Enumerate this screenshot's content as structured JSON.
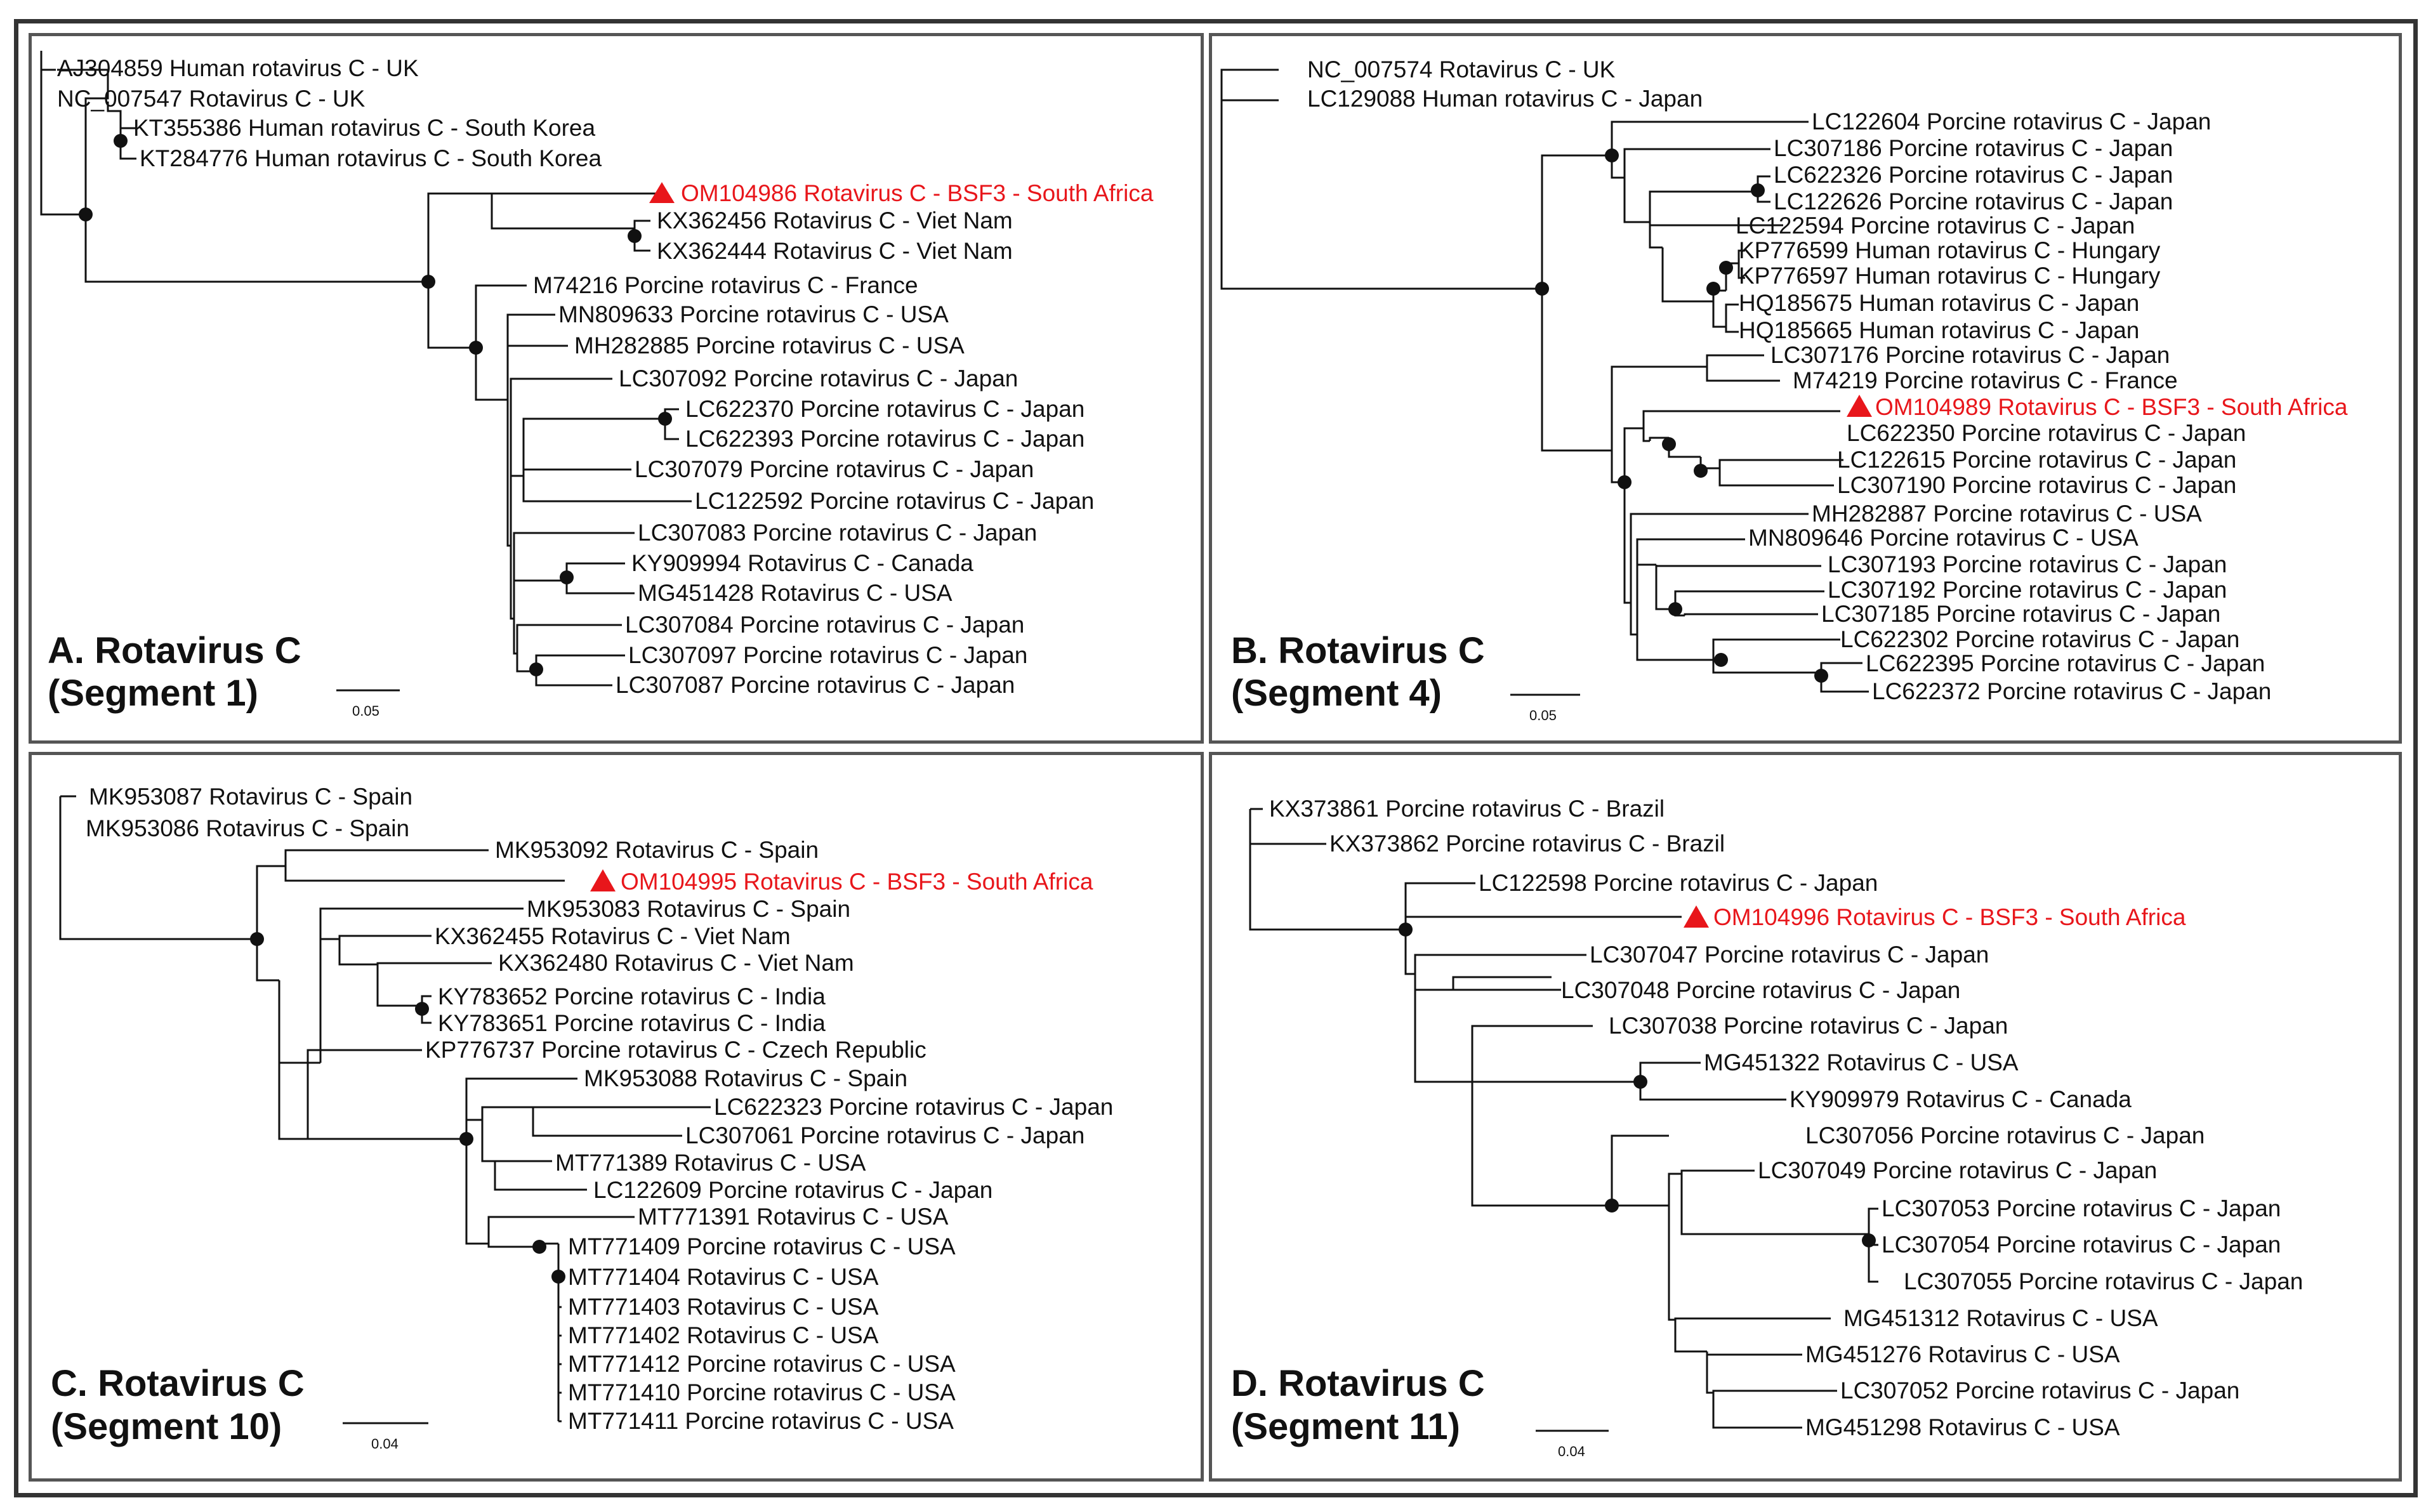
{
  "figure": {
    "description_panels": 4,
    "highlight_color": "#e8161b",
    "text_color": "#111111"
  },
  "panels": [
    {
      "id": "A",
      "title_line1": "A. Rotavirus C",
      "title_line2": "(Segment 1)",
      "scale": "0.05",
      "taxa": [
        {
          "label": "AJ304859 Human rotavirus C - UK"
        },
        {
          "label": "NC_007547 Rotavirus C - UK"
        },
        {
          "label": "KT355386 Human rotavirus C - South Korea"
        },
        {
          "label": "KT284776 Human rotavirus C - South Korea"
        },
        {
          "label": "OM104986 Rotavirus C - BSF3 - South Africa",
          "highlight": true
        },
        {
          "label": "KX362456 Rotavirus C - Viet Nam"
        },
        {
          "label": "KX362444 Rotavirus C - Viet Nam"
        },
        {
          "label": "M74216 Porcine rotavirus C - France"
        },
        {
          "label": "MN809633 Porcine rotavirus C - USA"
        },
        {
          "label": "MH282885 Porcine rotavirus C - USA"
        },
        {
          "label": "LC307092 Porcine rotavirus C - Japan"
        },
        {
          "label": "LC622370 Porcine rotavirus C - Japan"
        },
        {
          "label": "LC622393 Porcine rotavirus C - Japan"
        },
        {
          "label": "LC307079 Porcine rotavirus C - Japan"
        },
        {
          "label": "LC122592 Porcine rotavirus C - Japan"
        },
        {
          "label": "LC307083 Porcine rotavirus C - Japan"
        },
        {
          "label": "KY909994 Rotavirus C - Canada"
        },
        {
          "label": "MG451428 Rotavirus C - USA"
        },
        {
          "label": "LC307084 Porcine rotavirus C - Japan"
        },
        {
          "label": "LC307097 Porcine rotavirus C - Japan"
        },
        {
          "label": "LC307087 Porcine rotavirus C - Japan"
        }
      ]
    },
    {
      "id": "B",
      "title_line1": "B. Rotavirus C",
      "title_line2": "(Segment 4)",
      "scale": "0.05",
      "taxa": [
        {
          "label": "NC_007574 Rotavirus C - UK"
        },
        {
          "label": "LC129088 Human rotavirus C - Japan"
        },
        {
          "label": "LC122604 Porcine rotavirus C - Japan"
        },
        {
          "label": "LC307186 Porcine rotavirus C - Japan"
        },
        {
          "label": "LC622326 Porcine rotavirus C - Japan"
        },
        {
          "label": "LC122626 Porcine rotavirus C - Japan"
        },
        {
          "label": "LC122594 Porcine rotavirus C - Japan"
        },
        {
          "label": "KP776599 Human rotavirus C - Hungary"
        },
        {
          "label": "KP776597 Human rotavirus C - Hungary"
        },
        {
          "label": "HQ185675 Human rotavirus C - Japan"
        },
        {
          "label": "HQ185665 Human rotavirus C - Japan"
        },
        {
          "label": "LC307176 Porcine rotavirus C - Japan"
        },
        {
          "label": "M74219 Porcine rotavirus C - France"
        },
        {
          "label": "OM104989 Rotavirus C - BSF3 - South Africa",
          "highlight": true
        },
        {
          "label": "LC622350 Porcine rotavirus C - Japan"
        },
        {
          "label": "LC122615 Porcine rotavirus C - Japan"
        },
        {
          "label": "LC307190 Porcine rotavirus C - Japan"
        },
        {
          "label": "MH282887 Porcine rotavirus C - USA"
        },
        {
          "label": "MN809646 Porcine rotavirus C - USA"
        },
        {
          "label": "LC307193 Porcine rotavirus C - Japan"
        },
        {
          "label": "LC307192 Porcine rotavirus C - Japan"
        },
        {
          "label": "LC307185 Porcine rotavirus C - Japan"
        },
        {
          "label": "LC622302 Porcine rotavirus C - Japan"
        },
        {
          "label": "LC622395 Porcine rotavirus C - Japan"
        },
        {
          "label": "LC622372 Porcine rotavirus C - Japan"
        }
      ]
    },
    {
      "id": "C",
      "title_line1": "C. Rotavirus C",
      "title_line2": "(Segment 10)",
      "scale": "0.04",
      "taxa": [
        {
          "label": "MK953087 Rotavirus C - Spain"
        },
        {
          "label": "MK953086 Rotavirus C - Spain"
        },
        {
          "label": "MK953092 Rotavirus C - Spain"
        },
        {
          "label": "OM104995 Rotavirus C - BSF3 - South Africa",
          "highlight": true
        },
        {
          "label": "MK953083 Rotavirus C - Spain"
        },
        {
          "label": "KX362455 Rotavirus C - Viet Nam"
        },
        {
          "label": "KX362480 Rotavirus C - Viet Nam"
        },
        {
          "label": "KY783652 Porcine rotavirus C - India"
        },
        {
          "label": "KY783651 Porcine rotavirus C - India"
        },
        {
          "label": "KP776737 Porcine rotavirus C - Czech Republic"
        },
        {
          "label": "MK953088 Rotavirus C - Spain"
        },
        {
          "label": "LC622323 Porcine rotavirus C - Japan"
        },
        {
          "label": "LC307061 Porcine rotavirus C - Japan"
        },
        {
          "label": "MT771389 Rotavirus C - USA"
        },
        {
          "label": "LC122609 Porcine rotavirus C - Japan"
        },
        {
          "label": "MT771391 Rotavirus C - USA"
        },
        {
          "label": "MT771409 Porcine rotavirus C - USA"
        },
        {
          "label": "MT771404 Rotavirus C - USA"
        },
        {
          "label": "MT771403 Rotavirus C - USA"
        },
        {
          "label": "MT771402 Rotavirus C - USA"
        },
        {
          "label": "MT771412 Porcine rotavirus C - USA"
        },
        {
          "label": "MT771410 Porcine rotavirus C - USA"
        },
        {
          "label": "MT771411 Porcine rotavirus C - USA"
        }
      ]
    },
    {
      "id": "D",
      "title_line1": "D. Rotavirus C",
      "title_line2": "(Segment 11)",
      "scale": "0.04",
      "taxa": [
        {
          "label": "KX373861 Porcine rotavirus C - Brazil"
        },
        {
          "label": "KX373862 Porcine rotavirus C - Brazil"
        },
        {
          "label": "LC122598 Porcine rotavirus C - Japan"
        },
        {
          "label": "OM104996 Rotavirus C - BSF3 - South Africa",
          "highlight": true
        },
        {
          "label": "LC307047 Porcine rotavirus C - Japan"
        },
        {
          "label": "LC307048 Porcine rotavirus C - Japan"
        },
        {
          "label": "LC307038 Porcine rotavirus C - Japan"
        },
        {
          "label": "MG451322 Rotavirus C - USA"
        },
        {
          "label": "KY909979 Rotavirus C - Canada"
        },
        {
          "label": "LC307056 Porcine rotavirus C - Japan"
        },
        {
          "label": "LC307049 Porcine rotavirus C - Japan"
        },
        {
          "label": "LC307053 Porcine rotavirus C - Japan"
        },
        {
          "label": "LC307054 Porcine rotavirus C - Japan"
        },
        {
          "label": "LC307055 Porcine rotavirus C - Japan"
        },
        {
          "label": "MG451312 Rotavirus C - USA"
        },
        {
          "label": "MG451276 Rotavirus C - USA"
        },
        {
          "label": "LC307052 Porcine rotavirus C - Japan"
        },
        {
          "label": "MG451298 Rotavirus C - USA"
        }
      ]
    }
  ]
}
